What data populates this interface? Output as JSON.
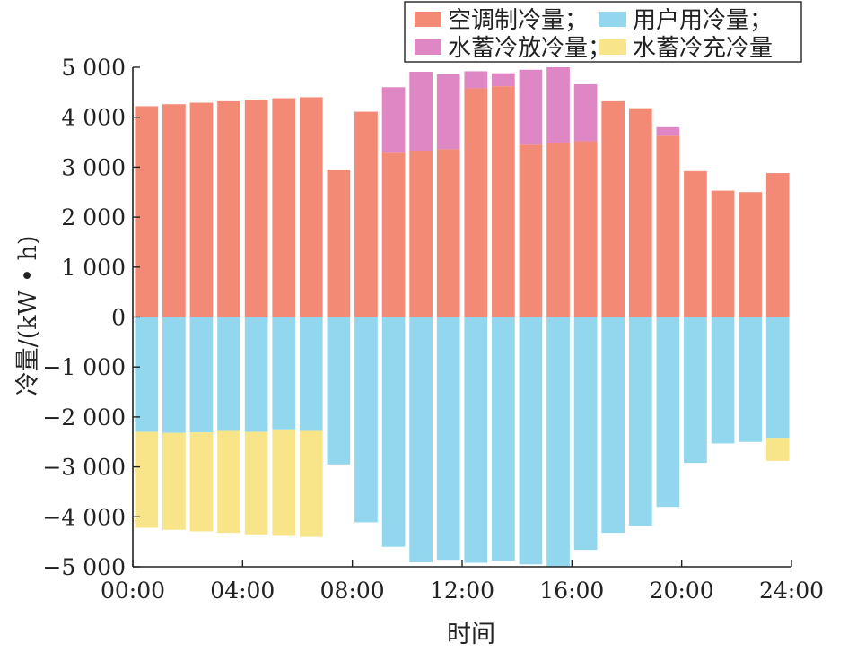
{
  "chart_data": {
    "type": "bar",
    "stacked": true,
    "xlabel": "时间",
    "ylabel": "冷量/(kW • h)",
    "ylim": [
      -5000,
      5000
    ],
    "xlim": [
      0,
      24
    ],
    "x_ticks": [
      0,
      4,
      8,
      12,
      16,
      20,
      24
    ],
    "x_tick_labels": [
      "00:00",
      "04:00",
      "08:00",
      "12:00",
      "16:00",
      "20:00",
      "24:00"
    ],
    "y_ticks": [
      5000,
      4000,
      3000,
      2000,
      1000,
      0,
      -1000,
      -2000,
      -3000,
      -4000,
      -5000
    ],
    "y_tick_labels": [
      "5 000",
      "4 000",
      "3 000",
      "2 000",
      "1 000",
      "0",
      "−1 000",
      "−2 000",
      "−3 000",
      "−4 000",
      "−5 000"
    ],
    "grid": false,
    "legend_position": "top-right",
    "hours": [
      1,
      2,
      3,
      4,
      5,
      6,
      7,
      8,
      9,
      10,
      11,
      12,
      13,
      14,
      15,
      16,
      17,
      18,
      19,
      20,
      21,
      22,
      23,
      24
    ],
    "series": [
      {
        "name": "空调制冷量；",
        "color": "#f28a75",
        "values": [
          4220,
          4260,
          4290,
          4320,
          4350,
          4380,
          4400,
          2950,
          4110,
          3290,
          3330,
          3360,
          4580,
          4620,
          3450,
          3490,
          3520,
          4320,
          4180,
          3630,
          2920,
          2530,
          2500,
          2880
        ]
      },
      {
        "name": "水蓄冷放冷量；",
        "color": "#df87c4",
        "values": [
          0,
          0,
          0,
          0,
          0,
          0,
          0,
          0,
          0,
          1310,
          1580,
          1500,
          340,
          260,
          1500,
          1510,
          1140,
          0,
          0,
          170,
          0,
          0,
          0,
          0
        ]
      },
      {
        "name": "用户用冷量；",
        "color": "#92d7ee",
        "values": [
          -2300,
          -2320,
          -2310,
          -2280,
          -2300,
          -2250,
          -2280,
          -2950,
          -4110,
          -4600,
          -4910,
          -4860,
          -4920,
          -4880,
          -4950,
          -5000,
          -4660,
          -4320,
          -4180,
          -3800,
          -2920,
          -2530,
          -2500,
          -2420
        ]
      },
      {
        "name": "水蓄冷充冷量",
        "color": "#f8e58a",
        "values": [
          -1920,
          -1940,
          -1980,
          -2040,
          -2050,
          -2130,
          -2120,
          0,
          0,
          0,
          0,
          0,
          0,
          0,
          0,
          0,
          0,
          0,
          0,
          0,
          0,
          0,
          0,
          -460
        ]
      }
    ]
  }
}
